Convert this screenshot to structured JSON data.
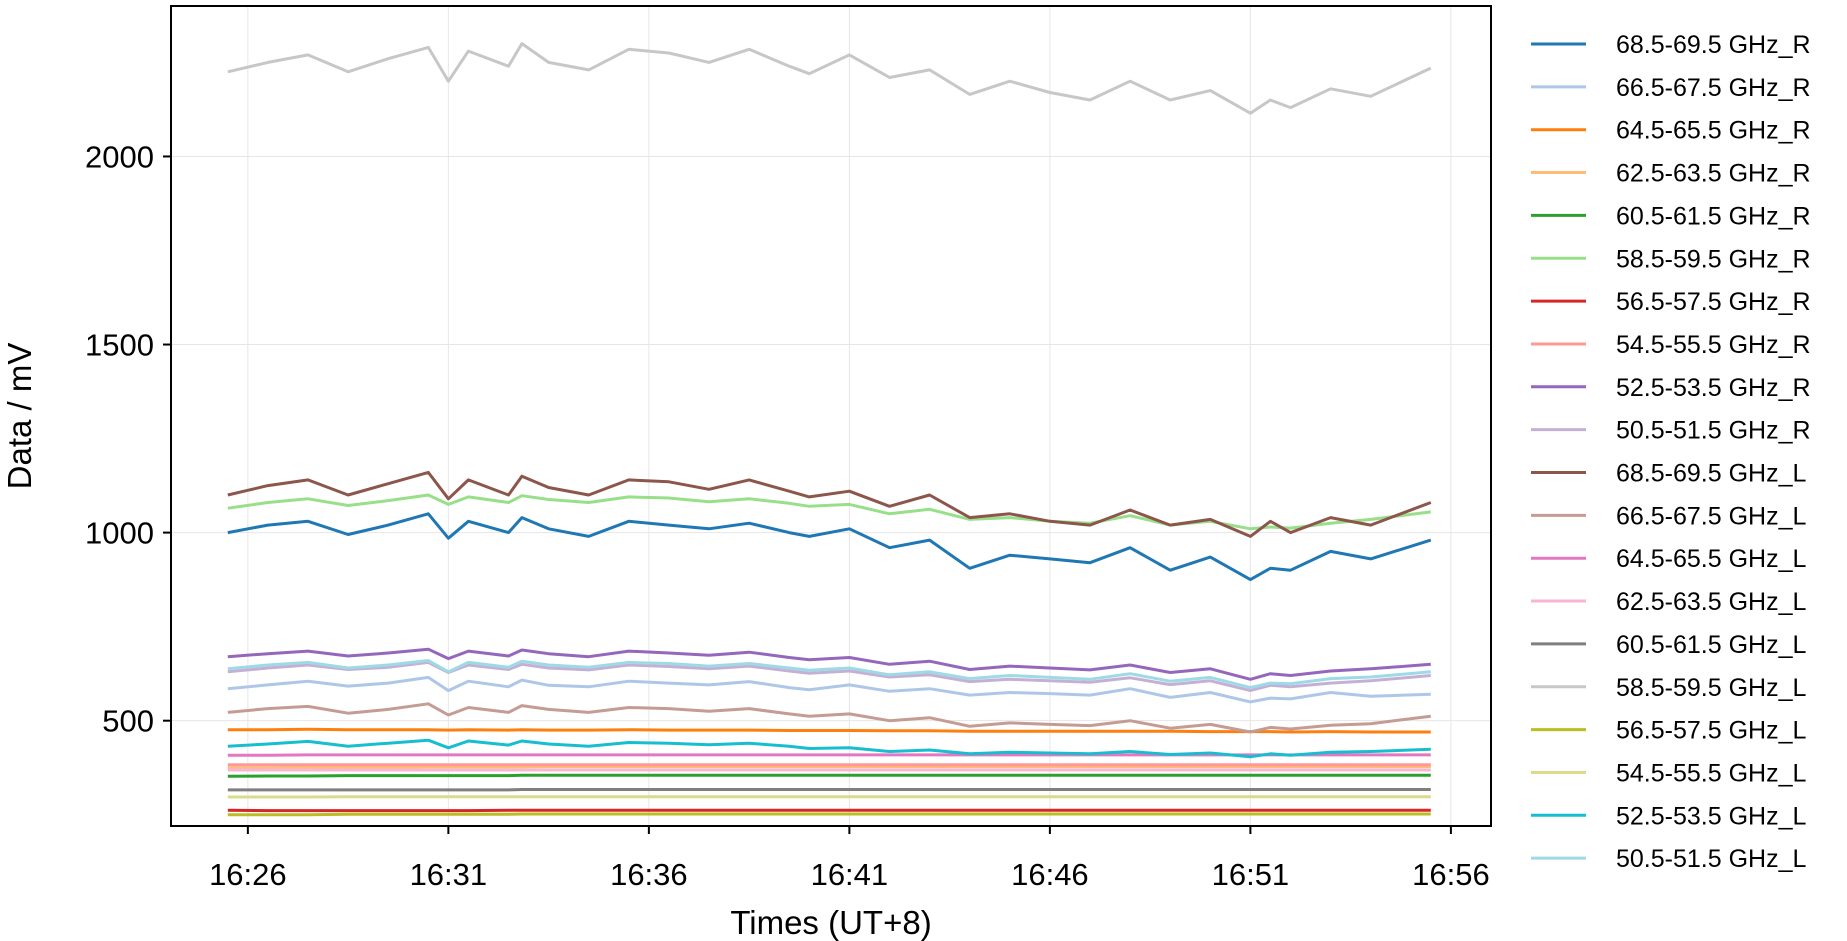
{
  "chart_data": {
    "type": "line",
    "title": "",
    "xlabel": "Times (UT+8)",
    "ylabel": "Data / mV",
    "x_ticks": [
      "16:26",
      "16:31",
      "16:36",
      "16:41",
      "16:46",
      "16:51",
      "16:56"
    ],
    "y_ticks": [
      500,
      1000,
      1500,
      2000
    ],
    "xlim": [
      "16:24:05",
      "16:57:00"
    ],
    "ylim": [
      220,
      2400
    ],
    "grid": true,
    "legend_position": "outside-right",
    "x": [
      "16:25:30",
      "16:26:30",
      "16:27:30",
      "16:28:30",
      "16:29:30",
      "16:30:30",
      "16:31:00",
      "16:31:30",
      "16:32:30",
      "16:32:50",
      "16:33:30",
      "16:34:30",
      "16:35:30",
      "16:36:30",
      "16:37:30",
      "16:38:30",
      "16:39:30",
      "16:40:00",
      "16:41:00",
      "16:42:00",
      "16:43:00",
      "16:44:00",
      "16:45:00",
      "16:46:00",
      "16:47:00",
      "16:48:00",
      "16:49:00",
      "16:50:00",
      "16:51:00",
      "16:51:30",
      "16:52:00",
      "16:53:00",
      "16:54:00",
      "16:55:30"
    ],
    "series": [
      {
        "name": "68.5-69.5 GHz_R",
        "color": "#1f77b4",
        "values": [
          1000,
          1020,
          1030,
          995,
          1020,
          1050,
          985,
          1030,
          1000,
          1040,
          1010,
          990,
          1030,
          1020,
          1010,
          1025,
          1000,
          990,
          1010,
          960,
          980,
          905,
          940,
          930,
          920,
          960,
          900,
          935,
          875,
          905,
          900,
          950,
          930,
          980
        ]
      },
      {
        "name": "66.5-67.5 GHz_R",
        "color": "#aec7e8",
        "values": [
          585,
          595,
          605,
          592,
          600,
          615,
          580,
          605,
          590,
          608,
          594,
          590,
          605,
          600,
          595,
          604,
          588,
          582,
          595,
          578,
          585,
          568,
          575,
          572,
          568,
          585,
          562,
          575,
          550,
          560,
          558,
          575,
          565,
          570
        ]
      },
      {
        "name": "64.5-65.5 GHz_R",
        "color": "#ff7f0e",
        "values": [
          476,
          476,
          477,
          476,
          476,
          476,
          475,
          476,
          475,
          476,
          475,
          475,
          476,
          475,
          475,
          475,
          474,
          474,
          474,
          473,
          473,
          472,
          472,
          472,
          472,
          472,
          472,
          471,
          471,
          471,
          470,
          471,
          470,
          470
        ]
      },
      {
        "name": "62.5-63.5 GHz_R",
        "color": "#ffbb78",
        "values": [
          375,
          375,
          376,
          376,
          376,
          377,
          377,
          377,
          377,
          377,
          378,
          378,
          378,
          378,
          378,
          378,
          378,
          378,
          378,
          378,
          378,
          378,
          378,
          378,
          378,
          378,
          378,
          378,
          378,
          378,
          378,
          378,
          378,
          378
        ]
      },
      {
        "name": "60.5-61.5 GHz_R",
        "color": "#2ca02c",
        "values": [
          352,
          353,
          353,
          354,
          354,
          354,
          354,
          354,
          354,
          355,
          355,
          355,
          355,
          355,
          355,
          355,
          355,
          355,
          355,
          355,
          355,
          355,
          355,
          355,
          355,
          355,
          355,
          355,
          355,
          355,
          355,
          355,
          355,
          355
        ]
      },
      {
        "name": "58.5-59.5 GHz_R",
        "color": "#98df8a",
        "values": [
          1065,
          1080,
          1090,
          1072,
          1085,
          1100,
          1075,
          1095,
          1080,
          1098,
          1088,
          1080,
          1095,
          1092,
          1082,
          1090,
          1078,
          1070,
          1075,
          1050,
          1062,
          1035,
          1040,
          1030,
          1025,
          1045,
          1020,
          1030,
          1010,
          1015,
          1012,
          1025,
          1035,
          1055
        ]
      },
      {
        "name": "56.5-57.5 GHz_R",
        "color": "#d62728",
        "values": [
          262,
          261,
          261,
          261,
          261,
          261,
          261,
          261,
          262,
          262,
          262,
          262,
          262,
          262,
          262,
          262,
          262,
          262,
          262,
          262,
          262,
          262,
          262,
          262,
          262,
          262,
          262,
          262,
          262,
          262,
          262,
          262,
          262,
          262
        ]
      },
      {
        "name": "54.5-55.5 GHz_R",
        "color": "#ff9896",
        "values": [
          383,
          383,
          383,
          383,
          383,
          383,
          383,
          383,
          383,
          383,
          383,
          383,
          383,
          383,
          383,
          383,
          383,
          383,
          383,
          383,
          383,
          383,
          383,
          383,
          383,
          383,
          383,
          383,
          383,
          383,
          383,
          383,
          383,
          383
        ]
      },
      {
        "name": "52.5-53.5 GHz_R",
        "color": "#9467bd",
        "values": [
          670,
          678,
          685,
          672,
          680,
          690,
          665,
          685,
          672,
          688,
          678,
          670,
          685,
          680,
          674,
          682,
          668,
          662,
          668,
          650,
          658,
          636,
          645,
          640,
          635,
          648,
          628,
          638,
          610,
          625,
          620,
          632,
          638,
          650
        ]
      },
      {
        "name": "50.5-51.5 GHz_R",
        "color": "#c5b0d5",
        "values": [
          630,
          640,
          648,
          636,
          642,
          655,
          628,
          648,
          636,
          650,
          640,
          635,
          648,
          644,
          638,
          645,
          632,
          626,
          632,
          616,
          622,
          604,
          610,
          606,
          602,
          614,
          596,
          606,
          580,
          594,
          590,
          600,
          606,
          620
        ]
      },
      {
        "name": "68.5-69.5 GHz_L",
        "color": "#8c564b",
        "values": [
          1100,
          1125,
          1140,
          1100,
          1130,
          1160,
          1090,
          1140,
          1100,
          1150,
          1120,
          1100,
          1140,
          1135,
          1115,
          1140,
          1110,
          1095,
          1110,
          1070,
          1100,
          1040,
          1050,
          1030,
          1020,
          1060,
          1020,
          1035,
          990,
          1030,
          1000,
          1040,
          1020,
          1080
        ]
      },
      {
        "name": "66.5-67.5 GHz_L",
        "color": "#c49c94",
        "values": [
          522,
          532,
          538,
          520,
          530,
          545,
          515,
          535,
          522,
          540,
          530,
          522,
          535,
          532,
          525,
          532,
          518,
          512,
          518,
          500,
          508,
          485,
          494,
          490,
          487,
          500,
          480,
          490,
          470,
          482,
          478,
          488,
          492,
          512
        ]
      },
      {
        "name": "64.5-65.5 GHz_L",
        "color": "#e377c2",
        "values": [
          408,
          408,
          409,
          409,
          409,
          409,
          409,
          409,
          409,
          409,
          409,
          409,
          409,
          409,
          409,
          409,
          409,
          409,
          409,
          409,
          409,
          409,
          409,
          409,
          409,
          409,
          409,
          409,
          409,
          409,
          409,
          409,
          409,
          409
        ]
      },
      {
        "name": "62.5-63.5 GHz_L",
        "color": "#f7b6d2",
        "values": [
          369,
          369,
          369,
          369,
          369,
          369,
          369,
          369,
          369,
          369,
          369,
          369,
          369,
          369,
          369,
          369,
          369,
          369,
          369,
          369,
          369,
          369,
          369,
          369,
          369,
          369,
          369,
          369,
          369,
          369,
          369,
          369,
          369,
          369
        ]
      },
      {
        "name": "60.5-61.5 GHz_L",
        "color": "#7f7f7f",
        "values": [
          316,
          316,
          316,
          316,
          316,
          316,
          316,
          316,
          316,
          317,
          317,
          317,
          317,
          317,
          317,
          317,
          317,
          317,
          317,
          317,
          317,
          317,
          317,
          317,
          317,
          317,
          317,
          317,
          317,
          317,
          317,
          317,
          317,
          317
        ]
      },
      {
        "name": "58.5-59.5 GHz_L",
        "color": "#c7c7c7",
        "values": [
          2225,
          2250,
          2270,
          2225,
          2260,
          2290,
          2200,
          2280,
          2240,
          2300,
          2250,
          2230,
          2285,
          2275,
          2250,
          2285,
          2240,
          2220,
          2270,
          2210,
          2230,
          2165,
          2200,
          2170,
          2150,
          2200,
          2150,
          2175,
          2115,
          2150,
          2130,
          2180,
          2160,
          2235
        ]
      },
      {
        "name": "56.5-57.5 GHz_L",
        "color": "#bcbd22",
        "values": [
          250,
          250,
          250,
          251,
          251,
          251,
          251,
          251,
          251,
          252,
          252,
          252,
          252,
          252,
          252,
          252,
          252,
          252,
          252,
          252,
          252,
          252,
          252,
          252,
          252,
          252,
          252,
          252,
          252,
          252,
          252,
          252,
          252,
          252
        ]
      },
      {
        "name": "54.5-55.5 GHz_L",
        "color": "#dbdb8d",
        "values": [
          297,
          297,
          297,
          298,
          298,
          298,
          298,
          298,
          298,
          298,
          298,
          298,
          298,
          298,
          298,
          298,
          298,
          298,
          298,
          298,
          298,
          298,
          298,
          298,
          298,
          298,
          298,
          298,
          298,
          298,
          298,
          298,
          298,
          298
        ]
      },
      {
        "name": "52.5-53.5 GHz_L",
        "color": "#17becf",
        "values": [
          432,
          438,
          445,
          432,
          440,
          448,
          428,
          446,
          435,
          446,
          438,
          432,
          442,
          440,
          436,
          440,
          432,
          426,
          428,
          418,
          422,
          412,
          416,
          414,
          412,
          418,
          410,
          414,
          404,
          412,
          408,
          416,
          418,
          424
        ]
      },
      {
        "name": "50.5-51.5 GHz_L",
        "color": "#9edae5",
        "values": [
          638,
          648,
          655,
          640,
          648,
          660,
          630,
          655,
          642,
          658,
          648,
          642,
          655,
          652,
          645,
          652,
          640,
          634,
          640,
          622,
          630,
          612,
          620,
          615,
          610,
          625,
          605,
          615,
          588,
          600,
          598,
          612,
          616,
          630
        ]
      }
    ]
  }
}
